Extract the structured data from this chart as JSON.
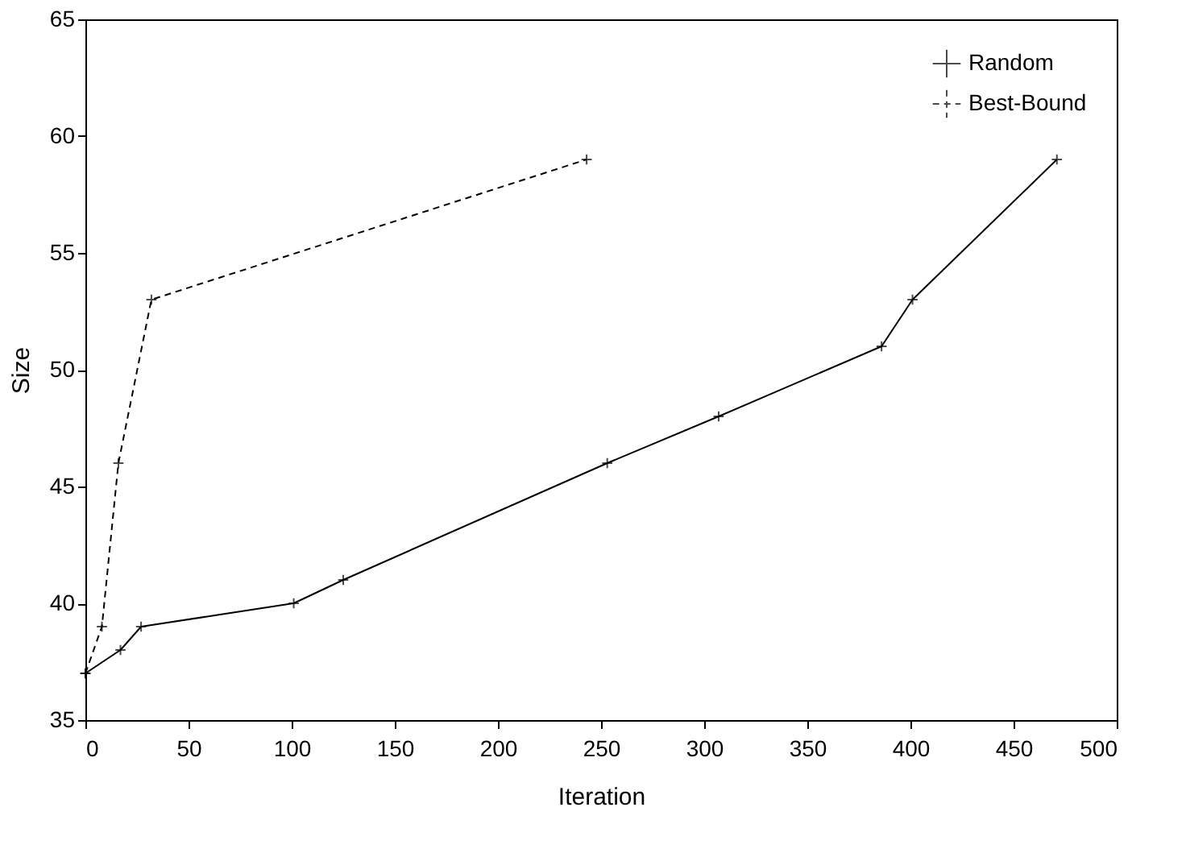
{
  "chart_data": {
    "type": "line",
    "xlabel": "Iteration",
    "ylabel": "Size",
    "series": [
      {
        "name": "Random",
        "color": "#000000",
        "line_style": "solid",
        "marker": "cross",
        "x": [
          0,
          17,
          27,
          101,
          125,
          253,
          307,
          386,
          401,
          471
        ],
        "values": [
          37,
          38,
          39,
          40,
          41,
          46,
          48,
          51,
          53,
          59
        ]
      },
      {
        "name": "Best-Bound",
        "color": "#000000",
        "line_style": "dashed",
        "marker": "cross",
        "x": [
          0,
          8,
          16,
          32,
          243
        ],
        "values": [
          37,
          39,
          46,
          53,
          59
        ]
      }
    ],
    "xlim": [
      0,
      500
    ],
    "xticks": [
      0,
      50,
      100,
      150,
      200,
      250,
      300,
      350,
      400,
      450,
      500
    ],
    "ylim": [
      35,
      65
    ],
    "yticks": [
      35,
      40,
      45,
      50,
      55,
      60,
      65
    ],
    "grid": false,
    "legend": "top right"
  }
}
